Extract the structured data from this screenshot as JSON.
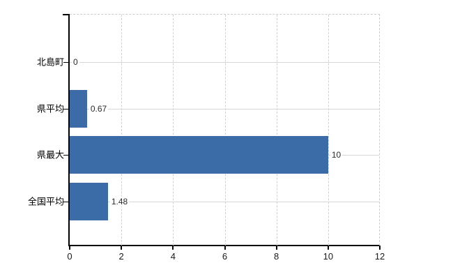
{
  "chart_data": {
    "type": "bar",
    "orientation": "horizontal",
    "title": "",
    "xlabel": "",
    "ylabel": "",
    "categories": [
      "北島町",
      "県平均",
      "県最大",
      "全国平均"
    ],
    "values": [
      0,
      0.67,
      10,
      1.48
    ],
    "value_labels": [
      "0",
      "0.67",
      "10",
      "1.48"
    ],
    "x_ticks": [
      0,
      2,
      4,
      6,
      8,
      10,
      12
    ],
    "x_tick_labels": [
      "0",
      "2",
      "4",
      "6",
      "8",
      "10",
      "12"
    ],
    "xlim": [
      0,
      12
    ],
    "grid": true,
    "legend": "none",
    "bar_color": "#3b6ca8",
    "h_grid_color": "#d5d9d1",
    "v_grid_color": "#d4ced2",
    "boundary_dash_color": "#cfcbcd",
    "axis_color": "#000000",
    "label_color": "#2a2a2a",
    "background": "#ffffff"
  }
}
